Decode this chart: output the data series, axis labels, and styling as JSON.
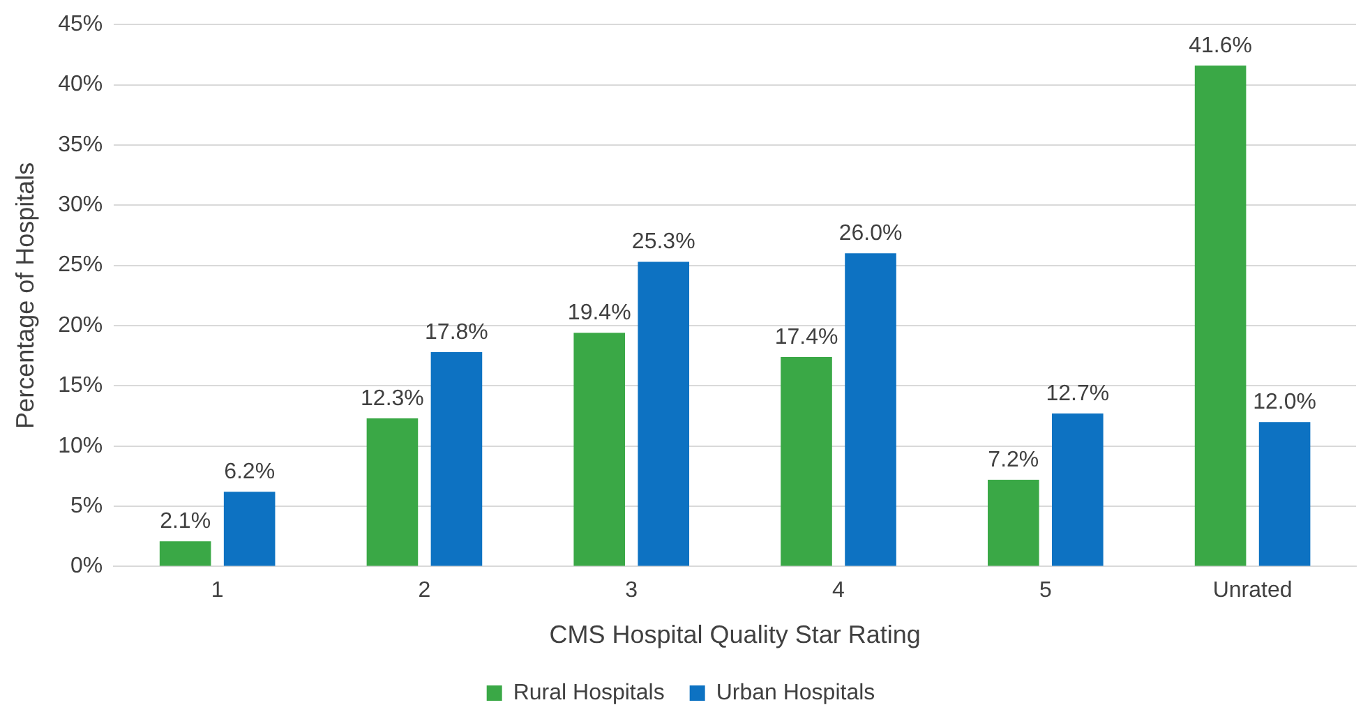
{
  "chart_data": {
    "type": "bar",
    "xlabel": "CMS Hospital Quality Star Rating",
    "ylabel": "Percentage of Hospitals",
    "categories": [
      "1",
      "2",
      "3",
      "4",
      "5",
      "Unrated"
    ],
    "series": [
      {
        "name": "Rural Hospitals",
        "color": "#3aa846",
        "values": [
          2.1,
          12.3,
          19.4,
          17.4,
          7.2,
          41.6
        ],
        "value_labels": [
          "2.1%",
          "12.3%",
          "19.4%",
          "17.4%",
          "7.2%",
          "41.6%"
        ]
      },
      {
        "name": "Urban Hospitals",
        "color": "#0d72c2",
        "values": [
          6.2,
          17.8,
          25.3,
          26.0,
          12.7,
          12.0
        ],
        "value_labels": [
          "6.2%",
          "17.8%",
          "25.3%",
          "26.0%",
          "12.7%",
          "12.0%"
        ]
      }
    ],
    "ylim": [
      0,
      45
    ],
    "yticks": [
      {
        "value": 0,
        "label": "0%"
      },
      {
        "value": 5,
        "label": "5%"
      },
      {
        "value": 10,
        "label": "10%"
      },
      {
        "value": 15,
        "label": "15%"
      },
      {
        "value": 20,
        "label": "20%"
      },
      {
        "value": 25,
        "label": "25%"
      },
      {
        "value": 30,
        "label": "30%"
      },
      {
        "value": 35,
        "label": "35%"
      },
      {
        "value": 40,
        "label": "40%"
      },
      {
        "value": 45,
        "label": "45%"
      }
    ],
    "grid": "y",
    "legend": "bottom"
  }
}
